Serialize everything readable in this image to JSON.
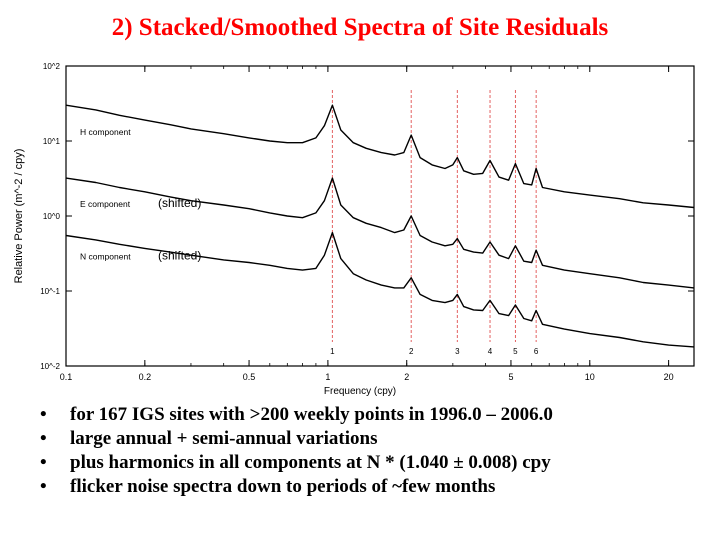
{
  "title": "2)  Stacked/Smoothed Spectra of Site Residuals",
  "bullets": [
    "for 167 IGS sites with >200 weekly points in 1996.0 – 2006.0",
    "large annual + semi-annual variations",
    "plus harmonics in all components at N * (1.040 ± 0.008) cpy",
    "flicker noise spectra down to periods of ~few months"
  ],
  "chart_data": {
    "type": "line",
    "xlabel": "Frequency (cpy)",
    "ylabel": "Relative Power (m^-2 / cpy)",
    "x_scale": "log",
    "y_scale": "log",
    "xlim": [
      0.1,
      25
    ],
    "ylim": [
      0.01,
      100
    ],
    "x_ticks": [
      {
        "value": 0.1,
        "label": "0.1"
      },
      {
        "value": 0.2,
        "label": "0.2"
      },
      {
        "value": 0.5,
        "label": "0.5"
      },
      {
        "value": 1,
        "label": "1"
      },
      {
        "value": 2,
        "label": "2"
      },
      {
        "value": 5,
        "label": "5"
      },
      {
        "value": 10,
        "label": "10"
      },
      {
        "value": 20,
        "label": "20"
      }
    ],
    "y_ticks": [
      {
        "value": 100,
        "label": "10^2"
      },
      {
        "value": 10,
        "label": "10^1"
      },
      {
        "value": 1,
        "label": "10^0"
      },
      {
        "value": 0.1,
        "label": "10^-1"
      },
      {
        "value": 0.01,
        "label": "10^-2"
      }
    ],
    "harmonics": [
      {
        "n": 1,
        "freq": 1.04,
        "label": "1"
      },
      {
        "n": 2,
        "freq": 2.08,
        "label": "2"
      },
      {
        "n": 3,
        "freq": 3.12,
        "label": "3"
      },
      {
        "n": 4,
        "freq": 4.16,
        "label": "4"
      },
      {
        "n": 5,
        "freq": 5.2,
        "label": "5"
      },
      {
        "n": 6,
        "freq": 6.24,
        "label": "6"
      }
    ],
    "series": [
      {
        "name": "H component",
        "annotation": "",
        "x": [
          0.1,
          0.13,
          0.16,
          0.2,
          0.25,
          0.3,
          0.4,
          0.5,
          0.6,
          0.7,
          0.8,
          0.9,
          0.97,
          1.04,
          1.12,
          1.25,
          1.4,
          1.6,
          1.8,
          1.95,
          2.08,
          2.25,
          2.5,
          2.8,
          3.0,
          3.12,
          3.3,
          3.6,
          3.9,
          4.16,
          4.5,
          4.9,
          5.2,
          5.6,
          6.0,
          6.24,
          6.6,
          8.0,
          10.0,
          13.0,
          16.0,
          20.0,
          25.0
        ],
        "y": [
          30,
          26,
          22,
          19,
          16.5,
          14.5,
          12.5,
          11,
          10,
          9.5,
          9.5,
          11,
          16,
          30,
          14,
          9.5,
          8,
          7,
          6.5,
          7,
          12,
          6,
          4.8,
          4.3,
          4.8,
          6,
          4,
          3.6,
          3.7,
          5.5,
          3.3,
          3,
          5,
          2.7,
          2.6,
          4.3,
          2.4,
          2.1,
          1.9,
          1.7,
          1.5,
          1.4,
          1.3
        ]
      },
      {
        "name": "E component",
        "annotation": "(shifted)",
        "x": [
          0.1,
          0.13,
          0.16,
          0.2,
          0.25,
          0.3,
          0.4,
          0.5,
          0.6,
          0.7,
          0.8,
          0.9,
          0.97,
          1.04,
          1.12,
          1.25,
          1.4,
          1.6,
          1.8,
          1.95,
          2.08,
          2.25,
          2.5,
          2.8,
          3.0,
          3.12,
          3.3,
          3.6,
          3.9,
          4.16,
          4.5,
          4.9,
          5.2,
          5.6,
          6.0,
          6.24,
          6.6,
          8.0,
          10.0,
          13.0,
          16.0,
          20.0,
          25.0
        ],
        "y": [
          3.2,
          2.8,
          2.4,
          2.1,
          1.8,
          1.6,
          1.4,
          1.25,
          1.1,
          1.0,
          0.95,
          1.1,
          1.6,
          3.2,
          1.4,
          0.95,
          0.8,
          0.7,
          0.6,
          0.65,
          1.0,
          0.55,
          0.45,
          0.4,
          0.42,
          0.5,
          0.36,
          0.33,
          0.32,
          0.45,
          0.3,
          0.27,
          0.4,
          0.25,
          0.24,
          0.35,
          0.22,
          0.19,
          0.17,
          0.15,
          0.13,
          0.12,
          0.11
        ]
      },
      {
        "name": "N component",
        "annotation": "(shifted)",
        "x": [
          0.1,
          0.13,
          0.16,
          0.2,
          0.25,
          0.3,
          0.4,
          0.5,
          0.6,
          0.7,
          0.8,
          0.9,
          0.97,
          1.04,
          1.12,
          1.25,
          1.4,
          1.6,
          1.8,
          1.95,
          2.08,
          2.25,
          2.5,
          2.8,
          3.0,
          3.12,
          3.3,
          3.6,
          3.9,
          4.16,
          4.5,
          4.9,
          5.2,
          5.6,
          6.0,
          6.24,
          6.6,
          8.0,
          10.0,
          13.0,
          16.0,
          20.0,
          25.0
        ],
        "y": [
          0.55,
          0.48,
          0.42,
          0.37,
          0.33,
          0.3,
          0.26,
          0.24,
          0.22,
          0.2,
          0.19,
          0.2,
          0.3,
          0.6,
          0.27,
          0.17,
          0.14,
          0.12,
          0.11,
          0.11,
          0.15,
          0.09,
          0.075,
          0.07,
          0.075,
          0.09,
          0.062,
          0.056,
          0.055,
          0.075,
          0.05,
          0.047,
          0.065,
          0.043,
          0.04,
          0.055,
          0.036,
          0.031,
          0.027,
          0.024,
          0.021,
          0.019,
          0.018
        ]
      }
    ]
  }
}
